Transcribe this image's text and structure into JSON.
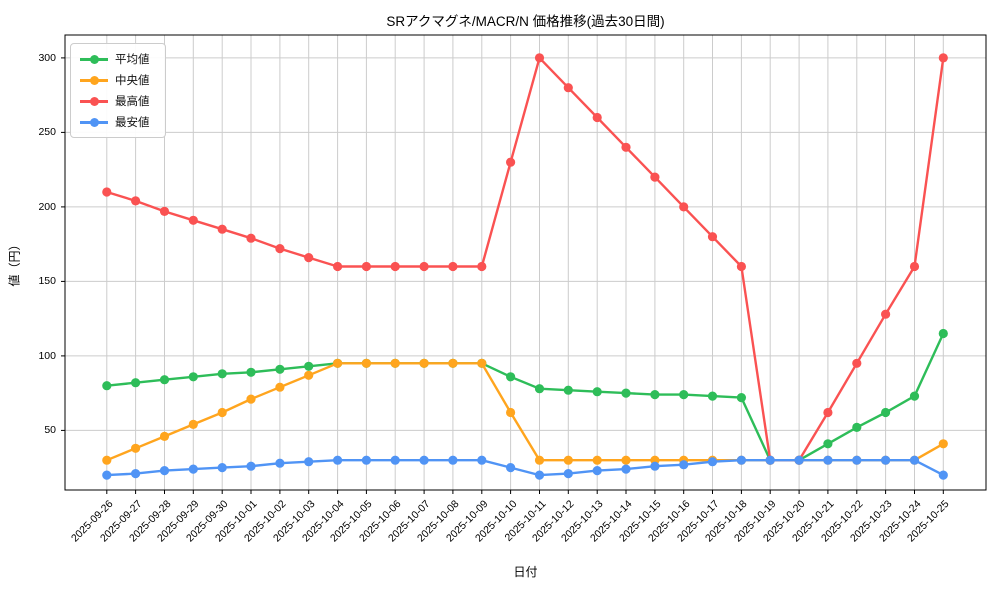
{
  "chart_data": {
    "type": "line",
    "title": "SRアクマグネ/MACR/N 価格推移(過去30日間)",
    "xlabel": "日付",
    "ylabel": "値（円）",
    "grid": true,
    "legend_position": "upper-left",
    "ylim": [
      10,
      315
    ],
    "yticks": [
      50,
      100,
      150,
      200,
      250,
      300
    ],
    "categories": [
      "2025-09-26",
      "2025-09-27",
      "2025-09-28",
      "2025-09-29",
      "2025-09-30",
      "2025-10-01",
      "2025-10-02",
      "2025-10-03",
      "2025-10-04",
      "2025-10-05",
      "2025-10-06",
      "2025-10-07",
      "2025-10-08",
      "2025-10-09",
      "2025-10-10",
      "2025-10-11",
      "2025-10-12",
      "2025-10-13",
      "2025-10-14",
      "2025-10-15",
      "2025-10-16",
      "2025-10-17",
      "2025-10-18",
      "2025-10-19",
      "2025-10-20",
      "2025-10-21",
      "2025-10-22",
      "2025-10-23",
      "2025-10-24",
      "2025-10-25"
    ],
    "series": [
      {
        "id": "average",
        "name": "平均値",
        "color": "#2ebd59",
        "values": [
          80,
          82,
          84,
          86,
          88,
          89,
          91,
          93,
          95,
          95,
          95,
          95,
          95,
          95,
          86,
          78,
          77,
          76,
          75,
          74,
          74,
          73,
          72,
          30,
          30,
          41,
          52,
          62,
          73,
          115
        ]
      },
      {
        "id": "median",
        "name": "中央値",
        "color": "#ffa51e",
        "values": [
          30,
          38,
          46,
          54,
          62,
          71,
          79,
          87,
          95,
          95,
          95,
          95,
          95,
          95,
          62,
          30,
          30,
          30,
          30,
          30,
          30,
          30,
          30,
          30,
          30,
          30,
          30,
          30,
          30,
          41
        ]
      },
      {
        "id": "max",
        "name": "最高値",
        "color": "#fa5252",
        "values": [
          210,
          204,
          197,
          191,
          185,
          179,
          172,
          166,
          160,
          160,
          160,
          160,
          160,
          160,
          230,
          300,
          280,
          260,
          240,
          220,
          200,
          180,
          160,
          30,
          30,
          62,
          95,
          128,
          160,
          300
        ]
      },
      {
        "id": "min",
        "name": "最安値",
        "color": "#5094f5",
        "values": [
          20,
          21,
          23,
          24,
          25,
          26,
          28,
          29,
          30,
          30,
          30,
          30,
          30,
          30,
          25,
          20,
          21,
          23,
          24,
          26,
          27,
          29,
          30,
          30,
          30,
          30,
          30,
          30,
          30,
          20
        ]
      }
    ]
  }
}
